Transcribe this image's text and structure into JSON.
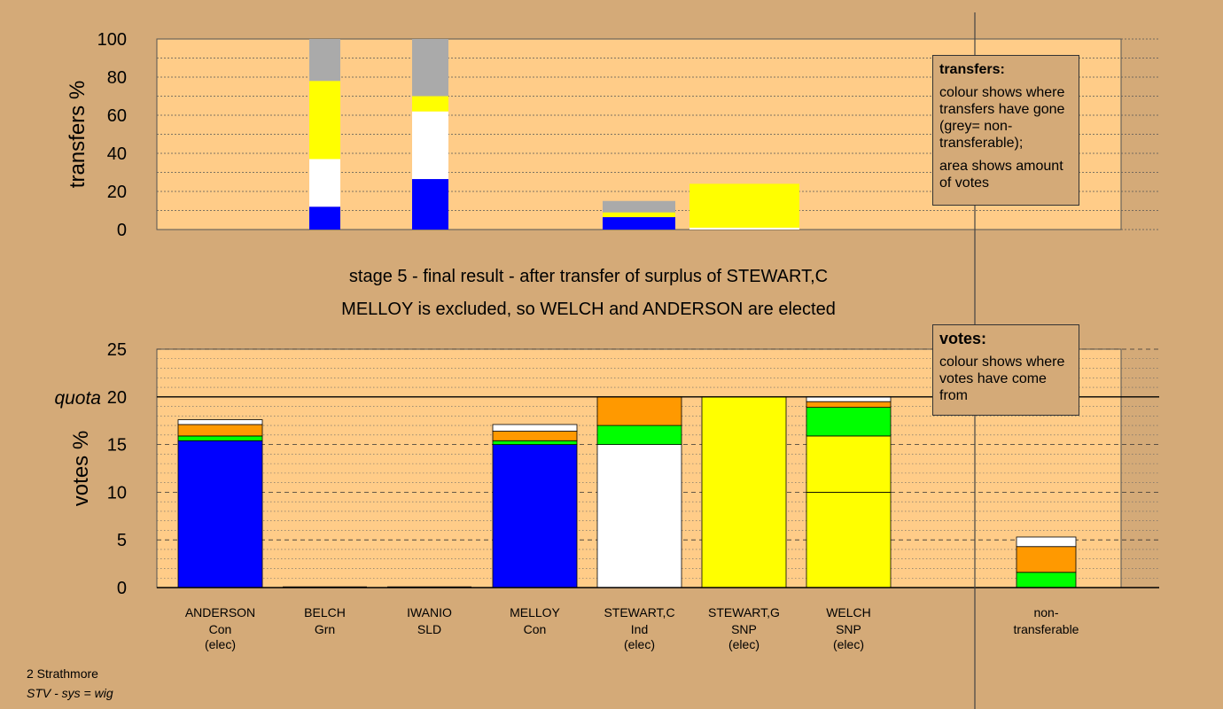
{
  "chart_data": [
    {
      "type": "bar",
      "stacked": true,
      "ylabel": "transfers %",
      "ylim": [
        0,
        100
      ],
      "yticks": [
        0,
        20,
        40,
        60,
        80,
        100
      ],
      "categories": [
        "ANDERSON",
        "BELCH",
        "IWANIO",
        "MELLOY",
        "STEWART,C",
        "STEWART,G",
        "WELCH"
      ],
      "series": [
        {
          "color": "#0000ff",
          "values": [
            0,
            12,
            26.5,
            0,
            6.5,
            0,
            0
          ]
        },
        {
          "color": "#ffffff",
          "values": [
            0,
            25,
            35.5,
            0,
            0,
            0,
            1
          ]
        },
        {
          "color": "#ffff00",
          "values": [
            0,
            41,
            8,
            0,
            2.5,
            0,
            23
          ]
        },
        {
          "color": "#aaaaaa",
          "values": [
            0,
            22,
            30,
            0,
            6,
            0,
            0
          ]
        }
      ]
    },
    {
      "type": "bar",
      "stacked": true,
      "ylabel": "votes %",
      "ylim": [
        0,
        25
      ],
      "yticks": [
        0,
        5,
        10,
        15,
        20,
        25
      ],
      "quota": 20,
      "quota_label": "quota",
      "categories": [
        "ANDERSON",
        "BELCH",
        "IWANIO",
        "MELLOY",
        "STEWART,C",
        "STEWART,G",
        "WELCH",
        "non-transferable"
      ],
      "series": [
        {
          "color": "#ffff00",
          "values": [
            0,
            0,
            0,
            0,
            0,
            20,
            10,
            0
          ]
        },
        {
          "color": "#ffff00",
          "values": [
            0,
            0,
            0,
            0,
            0,
            0,
            5.9,
            0
          ]
        },
        {
          "color": "#ffffff",
          "values": [
            0,
            0,
            0,
            0,
            15,
            0,
            0,
            0
          ]
        },
        {
          "color": "#0000ff",
          "values": [
            15.4,
            0,
            0,
            15,
            0,
            0,
            0,
            0
          ]
        },
        {
          "color": "#00ff00",
          "values": [
            0.5,
            0,
            0,
            0.4,
            2,
            0,
            3,
            1.6
          ]
        },
        {
          "color": "#ff9900",
          "values": [
            1.2,
            0,
            0,
            1,
            3,
            0,
            0.6,
            2.7
          ]
        },
        {
          "color": "#ffffff",
          "values": [
            0.5,
            0,
            0,
            0.7,
            0,
            0,
            0.5,
            1
          ]
        }
      ]
    }
  ],
  "candidates": [
    {
      "name": "ANDERSON",
      "party": "Con",
      "status": "(elec)"
    },
    {
      "name": "BELCH",
      "party": "Grn",
      "status": ""
    },
    {
      "name": "IWANIO",
      "party": "SLD",
      "status": ""
    },
    {
      "name": "MELLOY",
      "party": "Con",
      "status": ""
    },
    {
      "name": "STEWART,C",
      "party": "Ind",
      "status": "(elec)"
    },
    {
      "name": "STEWART,G",
      "party": "SNP",
      "status": "(elec)"
    },
    {
      "name": "WELCH",
      "party": "SNP",
      "status": "(elec)"
    }
  ],
  "nontransferable_label": [
    "non-",
    "transferable"
  ],
  "stage_title": "stage 5 - final result - after transfer of surplus of STEWART,C",
  "stage_subtitle": "MELLOY is excluded, so WELCH and ANDERSON are elected",
  "legend_transfers": {
    "title": "transfers:",
    "line1": "colour shows where transfers have gone (grey= non-transferable);",
    "line2": "area shows amount of votes"
  },
  "legend_votes": {
    "title": "votes:",
    "line1": "colour shows where votes have come from"
  },
  "footer": {
    "area": "2 Strathmore",
    "system": "STV - sys = wig"
  }
}
